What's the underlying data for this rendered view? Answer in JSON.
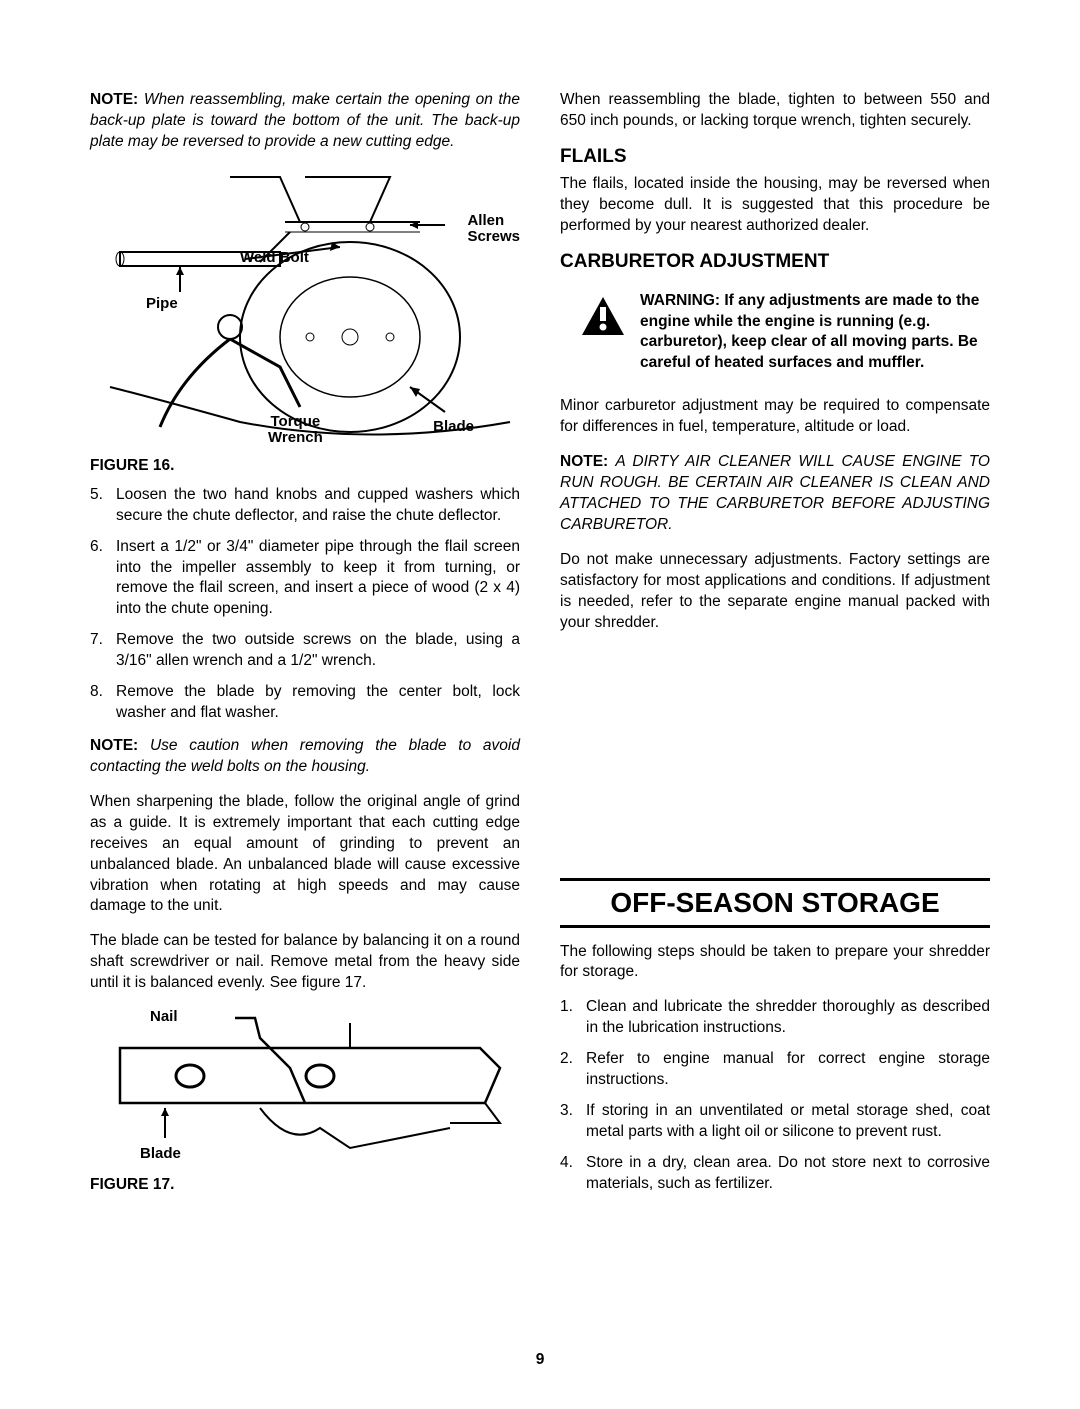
{
  "left": {
    "note1_label": "NOTE:",
    "note1_text": "When reassembling, make certain the opening on the back-up plate is toward the bottom of the unit. The back-up plate may be reversed to provide a new cutting edge.",
    "fig16": {
      "annot_allen": "Allen\nScrews",
      "annot_weld": "Weld Bolt",
      "annot_pipe": "Pipe",
      "annot_torque": "Torque\nWrench",
      "annot_blade": "Blade"
    },
    "fig16_label": "FIGURE 16.",
    "steps_a": [
      "Loosen the two hand knobs and cupped washers which secure the chute deflector, and raise the chute deflector.",
      "Insert a 1/2\" or 3/4\" diameter pipe through the flail screen into the impeller assembly to keep it from turning, or remove the flail screen, and insert a piece of wood (2 x 4) into the chute opening.",
      "Remove the two outside screws on the blade, using a 3/16\" allen wrench and a 1/2\" wrench.",
      "Remove the blade by removing the center bolt, lock washer and flat washer."
    ],
    "note2_label": "NOTE:",
    "note2_text": "Use caution when removing the blade to avoid contacting the weld bolts on the housing.",
    "para_sharpen": "When sharpening the blade, follow the original angle of grind as a guide. It is extremely important that each cutting edge receives an equal amount of grinding to prevent an unbalanced blade. An unbalanced blade will cause excessive vibration when rotating at high speeds and may cause damage to the unit.",
    "para_balance": "The blade can be tested for balance by balancing it on a round shaft screwdriver or nail. Remove metal from the heavy side until it is balanced evenly. See figure 17.",
    "fig17": {
      "annot_nail": "Nail",
      "annot_blade": "Blade"
    },
    "fig17_label": "FIGURE 17."
  },
  "right": {
    "para_reassemble": "When reassembling the blade, tighten to between 550 and 650 inch pounds, or lacking torque wrench, tighten securely.",
    "flails_heading": "FLAILS",
    "para_flails": "The flails, located inside the housing, may be reversed when they become dull. It is suggested that this procedure be performed by your nearest authorized dealer.",
    "carb_heading": "CARBURETOR ADJUSTMENT",
    "warning_text": "WARNING: If any adjustments are made to the engine while the engine is running (e.g. carburetor), keep clear of all moving parts. Be careful of heated surfaces and muffler.",
    "para_minor": "Minor carburetor adjustment may be required to compensate for differences in fuel, temperature, altitude or load.",
    "note3_label": "NOTE:",
    "note3_text": "A DIRTY AIR CLEANER WILL CAUSE ENGINE TO RUN ROUGH. BE CERTAIN AIR CLEANER IS CLEAN AND ATTACHED TO THE CARBURETOR BEFORE ADJUSTING CARBURETOR.",
    "para_factory": "Do not make unnecessary adjustments. Factory settings are satisfactory for most applications and conditions. If adjustment is needed, refer to the separate engine manual packed with your shredder.",
    "storage_heading": "OFF-SEASON STORAGE",
    "para_storage_intro": "The following steps should be taken to prepare your shredder for storage.",
    "storage_steps": [
      "Clean and lubricate the shredder thoroughly as described in the lubrication instructions.",
      "Refer to engine manual for correct engine storage instructions.",
      "If storing in an unventilated or metal storage shed, coat metal parts with a light oil or silicone to prevent rust.",
      "Store in a dry, clean area. Do not store next to corrosive materials, such as fertilizer."
    ]
  },
  "page_number": "9"
}
